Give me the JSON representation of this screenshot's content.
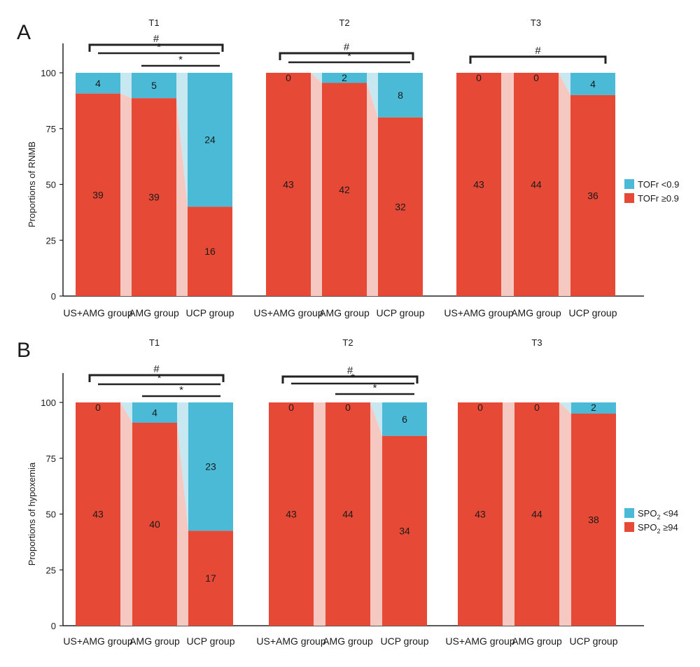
{
  "colors": {
    "low": "#4bbad6",
    "high": "#e64a36",
    "low_connector": "#c8e8f1",
    "high_connector": "#f6c8c2",
    "axis": "#222222"
  },
  "chart_data": [
    {
      "type": "bar",
      "stacked": true,
      "panel_label": "A",
      "ylabel": "Proportions of RNMB",
      "ylim": [
        0,
        100
      ],
      "yticks": [
        "0",
        "25",
        "50",
        "75",
        "100"
      ],
      "categories": [
        "US+AMG group",
        "AMG group",
        "UCP group"
      ],
      "legend": [
        {
          "key": "low",
          "text": "TOFr <0.9"
        },
        {
          "key": "high",
          "text": "TOFr ≥0.9"
        }
      ],
      "groups": [
        {
          "title": "T1",
          "series_high": {
            "counts": [
              39,
              39,
              16
            ],
            "labels": [
              "39",
              "39",
              "16"
            ]
          },
          "series_low": {
            "counts": [
              4,
              5,
              24
            ],
            "labels": [
              "4",
              "5",
              "24"
            ]
          },
          "significance": [
            {
              "symbol": "#",
              "from": 0,
              "to": 2,
              "style": "bracket"
            },
            {
              "symbol": "*",
              "from": 0,
              "to": 2,
              "style": "line"
            },
            {
              "symbol": "*",
              "from": 1,
              "to": 2,
              "style": "line"
            }
          ]
        },
        {
          "title": "T2",
          "series_high": {
            "counts": [
              43,
              42,
              32
            ],
            "labels": [
              "43",
              "42",
              "32"
            ]
          },
          "series_low": {
            "counts": [
              0,
              2,
              8
            ],
            "labels": [
              "0",
              "2",
              "8"
            ]
          },
          "significance": [
            {
              "symbol": "#",
              "from": 0,
              "to": 2,
              "style": "bracket"
            },
            {
              "symbol": "*",
              "from": 0,
              "to": 2,
              "style": "line"
            }
          ]
        },
        {
          "title": "T3",
          "series_high": {
            "counts": [
              43,
              44,
              36
            ],
            "labels": [
              "43",
              "44",
              "36"
            ]
          },
          "series_low": {
            "counts": [
              0,
              0,
              4
            ],
            "labels": [
              "0",
              "0",
              "4"
            ]
          },
          "significance": [
            {
              "symbol": "#",
              "from": 0,
              "to": 2,
              "style": "bracket"
            }
          ]
        }
      ]
    },
    {
      "type": "bar",
      "stacked": true,
      "panel_label": "B",
      "ylabel": "Proportions of hypoxemia",
      "ylim": [
        0,
        100
      ],
      "yticks": [
        "0",
        "25",
        "50",
        "75",
        "100"
      ],
      "categories": [
        "US+AMG group",
        "AMG group",
        "UCP group"
      ],
      "legend": [
        {
          "key": "low",
          "text": "SPO",
          "sub": "2",
          "tail": " <94"
        },
        {
          "key": "high",
          "text": "SPO",
          "sub": "2",
          "tail": " ≥94"
        }
      ],
      "groups": [
        {
          "title": "T1",
          "series_high": {
            "counts": [
              43,
              40,
              17
            ],
            "labels": [
              "43",
              "40",
              "17"
            ]
          },
          "series_low": {
            "counts": [
              0,
              4,
              23
            ],
            "labels": [
              "0",
              "4",
              "23"
            ]
          },
          "significance": [
            {
              "symbol": "#",
              "from": 0,
              "to": 2,
              "style": "bracket"
            },
            {
              "symbol": "*",
              "from": 0,
              "to": 2,
              "style": "line"
            },
            {
              "symbol": "*",
              "from": 1,
              "to": 2,
              "style": "line"
            }
          ]
        },
        {
          "title": "T2",
          "series_high": {
            "counts": [
              43,
              44,
              34
            ],
            "labels": [
              "43",
              "44",
              "34"
            ]
          },
          "series_low": {
            "counts": [
              0,
              0,
              6
            ],
            "labels": [
              "0",
              "0",
              "6"
            ]
          },
          "significance": [
            {
              "symbol": "#",
              "from": 0,
              "to": 2,
              "style": "bracket"
            },
            {
              "symbol": "*",
              "from": 0,
              "to": 2,
              "style": "line"
            },
            {
              "symbol": "*",
              "from": 1,
              "to": 2,
              "style": "line"
            }
          ]
        },
        {
          "title": "T3",
          "series_high": {
            "counts": [
              43,
              44,
              38
            ],
            "labels": [
              "43",
              "44",
              "38"
            ]
          },
          "series_low": {
            "counts": [
              0,
              0,
              2
            ],
            "labels": [
              "0",
              "0",
              "2"
            ]
          },
          "significance": []
        }
      ]
    }
  ]
}
